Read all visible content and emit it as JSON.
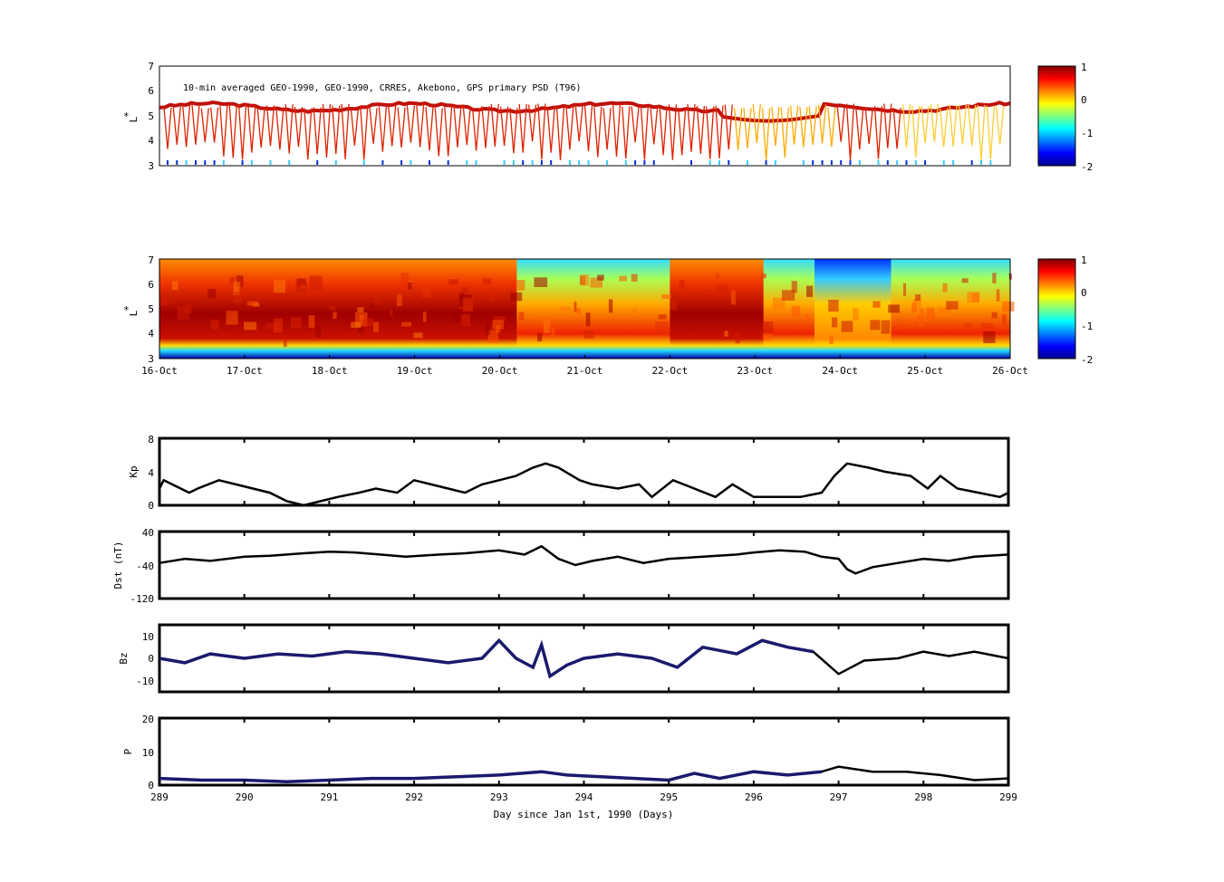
{
  "panel1": {
    "title": "10-min averaged GEO-1990, GEO-1990, CRRES, Akebono, GPS  primary PSD (T96)",
    "ylabel_star": "*",
    "ylabel": "L",
    "yticks": [
      "7",
      "6",
      "5",
      "4",
      "3"
    ],
    "colorbar_ticks": [
      "1",
      "0",
      "-1",
      "-2"
    ]
  },
  "panel2": {
    "ylabel_star": "*",
    "ylabel": "L",
    "yticks": [
      "7",
      "6",
      "5",
      "4",
      "3"
    ],
    "xticks": [
      "16-Oct",
      "17-Oct",
      "18-Oct",
      "19-Oct",
      "20-Oct",
      "21-Oct",
      "22-Oct",
      "23-Oct",
      "24-Oct",
      "25-Oct",
      "26-Oct"
    ],
    "colorbar_ticks": [
      "1",
      "0",
      "-1",
      "-2"
    ]
  },
  "panel_kp": {
    "ylabel": "Kp",
    "yticks": [
      "8",
      "4",
      "0"
    ]
  },
  "panel_dst": {
    "ylabel": "Dst (nT)",
    "yticks": [
      "40",
      "-40",
      "-120"
    ]
  },
  "panel_bz": {
    "ylabel": "Bz",
    "yticks": [
      "10",
      "0",
      "-10"
    ]
  },
  "panel_p": {
    "ylabel": "P",
    "yticks": [
      "20",
      "10",
      "0"
    ]
  },
  "bottom_xticks": [
    "289",
    "290",
    "291",
    "292",
    "293",
    "294",
    "295",
    "296",
    "297",
    "298",
    "299"
  ],
  "bottom_xlabel": "Day since Jan 1st, 1990 (Days)",
  "chart_data": [
    {
      "type": "heatmap",
      "title": "10-min averaged GEO-1990, GEO-1990, CRRES, Akebono, GPS  primary PSD (T96)",
      "ylabel": "L*",
      "ylim": [
        3,
        7
      ],
      "xlim": [
        289,
        299
      ],
      "colorbar_range": [
        -2,
        1
      ]
    },
    {
      "type": "heatmap",
      "ylabel": "L*",
      "ylim": [
        3,
        7
      ],
      "xlim": [
        289,
        299
      ],
      "colorbar_range": [
        -2,
        1
      ]
    },
    {
      "type": "line",
      "ylabel": "Kp",
      "ylim": [
        0,
        8
      ],
      "xlim": [
        289,
        299
      ],
      "x": [
        289.0,
        289.05,
        289.35,
        289.45,
        289.7,
        289.9,
        290.3,
        290.5,
        290.7,
        290.9,
        291.1,
        291.35,
        291.55,
        291.8,
        292.0,
        292.2,
        292.4,
        292.6,
        292.8,
        293.0,
        293.2,
        293.4,
        293.55,
        293.7,
        293.95,
        294.1,
        294.4,
        294.65,
        294.8,
        295.05,
        295.3,
        295.55,
        295.75,
        296.0,
        296.3,
        296.55,
        296.8,
        296.95,
        297.1,
        297.35,
        297.55,
        297.85,
        298.05,
        298.2,
        298.4,
        298.65,
        298.9,
        299.0
      ],
      "y": [
        2,
        3,
        1.5,
        2,
        3,
        2.5,
        1.5,
        0.5,
        0,
        0.5,
        1,
        1.5,
        2,
        1.5,
        3,
        2.5,
        2,
        1.5,
        2.5,
        3,
        3.5,
        4.5,
        5,
        4.5,
        3,
        2.5,
        2,
        2.5,
        1,
        3,
        2,
        1,
        2.5,
        1,
        1,
        1,
        1.5,
        3.5,
        5,
        4.5,
        4,
        3.5,
        2,
        3.5,
        2,
        1.5,
        1,
        1.5
      ]
    },
    {
      "type": "line",
      "ylabel": "Dst (nT)",
      "ylim": [
        -120,
        40
      ],
      "xlim": [
        289,
        299
      ],
      "x": [
        289.0,
        289.3,
        289.6,
        290.0,
        290.3,
        290.7,
        291.0,
        291.3,
        291.6,
        291.9,
        292.3,
        292.6,
        293.0,
        293.3,
        293.5,
        293.7,
        293.9,
        294.1,
        294.4,
        294.7,
        295.0,
        295.4,
        295.8,
        296.0,
        296.3,
        296.6,
        296.8,
        297.0,
        297.1,
        297.2,
        297.4,
        297.7,
        298.0,
        298.3,
        298.6,
        299.0
      ],
      "y": [
        -35,
        -25,
        -30,
        -20,
        -18,
        -12,
        -8,
        -10,
        -15,
        -20,
        -15,
        -12,
        -5,
        -15,
        5,
        -25,
        -40,
        -30,
        -20,
        -35,
        -25,
        -20,
        -15,
        -10,
        -5,
        -8,
        -20,
        -25,
        -50,
        -60,
        -45,
        -35,
        -25,
        -30,
        -20,
        -15
      ]
    },
    {
      "type": "line",
      "ylabel": "Bz",
      "ylim": [
        -15,
        15
      ],
      "xlim": [
        289,
        299
      ],
      "x": [
        289.0,
        289.3,
        289.6,
        290.0,
        290.4,
        290.8,
        291.2,
        291.6,
        292.0,
        292.4,
        292.8,
        293.0,
        293.2,
        293.4,
        293.5,
        293.6,
        293.8,
        294.0,
        294.4,
        294.8,
        295.1,
        295.4,
        295.8,
        296.1,
        296.4,
        296.7,
        297.0,
        297.3,
        297.7,
        298.0,
        298.3,
        298.6,
        299.0
      ],
      "y": [
        0,
        -2,
        2,
        0,
        2,
        1,
        3,
        2,
        0,
        -2,
        0,
        8,
        0,
        -4,
        6,
        -8,
        -3,
        0,
        2,
        0,
        -4,
        5,
        2,
        8,
        5,
        3,
        -7,
        -1,
        0,
        3,
        1,
        3,
        0
      ]
    },
    {
      "type": "line",
      "ylabel": "P",
      "ylim": [
        0,
        20
      ],
      "xlim": [
        289,
        299
      ],
      "x": [
        289.0,
        289.5,
        290.0,
        290.5,
        291.0,
        291.5,
        292.0,
        292.5,
        293.0,
        293.5,
        293.8,
        294.2,
        294.6,
        295.0,
        295.3,
        295.6,
        296.0,
        296.4,
        296.8,
        297.0,
        297.4,
        297.8,
        298.2,
        298.6,
        299.0
      ],
      "y": [
        2,
        1.5,
        1.5,
        1,
        1.5,
        2,
        2,
        2.5,
        3,
        4,
        3,
        2.5,
        2,
        1.5,
        3.5,
        2,
        4,
        3,
        4,
        5.5,
        4,
        4,
        3,
        1.5,
        2
      ]
    }
  ]
}
